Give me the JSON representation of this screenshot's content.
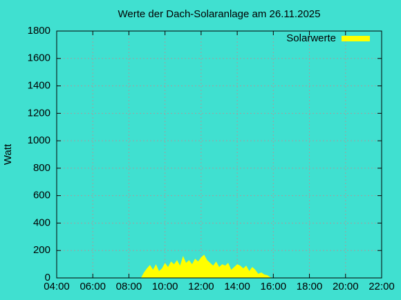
{
  "chart_data": {
    "type": "area",
    "title": "Werte der Dach-Solaranlage am 26.11.2025",
    "ylabel": "Watt",
    "x": [
      "08:40",
      "08:50",
      "09:00",
      "09:10",
      "09:20",
      "09:30",
      "09:40",
      "09:50",
      "10:00",
      "10:10",
      "10:20",
      "10:30",
      "10:40",
      "10:50",
      "11:00",
      "11:10",
      "11:20",
      "11:30",
      "11:40",
      "11:50",
      "12:00",
      "12:10",
      "12:20",
      "12:30",
      "12:40",
      "12:50",
      "13:00",
      "13:10",
      "13:20",
      "13:30",
      "13:40",
      "13:50",
      "14:00",
      "14:10",
      "14:20",
      "14:30",
      "14:40",
      "14:50",
      "15:00",
      "15:10",
      "15:20",
      "15:30",
      "15:40",
      "15:50",
      "16:00"
    ],
    "series": [
      {
        "name": "Solarwerte",
        "color": "#ffff00",
        "values": [
          0,
          40,
          70,
          95,
          60,
          100,
          50,
          70,
          110,
          80,
          120,
          100,
          130,
          90,
          160,
          110,
          130,
          100,
          140,
          120,
          150,
          170,
          130,
          110,
          90,
          120,
          80,
          100,
          90,
          110,
          60,
          80,
          100,
          90,
          70,
          90,
          50,
          80,
          60,
          30,
          40,
          25,
          20,
          5,
          0
        ]
      }
    ],
    "xlim": [
      "04:00",
      "22:00"
    ],
    "xticks": [
      "04:00",
      "06:00",
      "08:00",
      "10:00",
      "12:00",
      "14:00",
      "16:00",
      "18:00",
      "20:00",
      "22:00"
    ],
    "ylim": [
      0,
      1800
    ],
    "yticks": [
      0,
      200,
      400,
      600,
      800,
      1000,
      1200,
      1400,
      1600,
      1800
    ],
    "grid": true,
    "legend": "top-right"
  }
}
